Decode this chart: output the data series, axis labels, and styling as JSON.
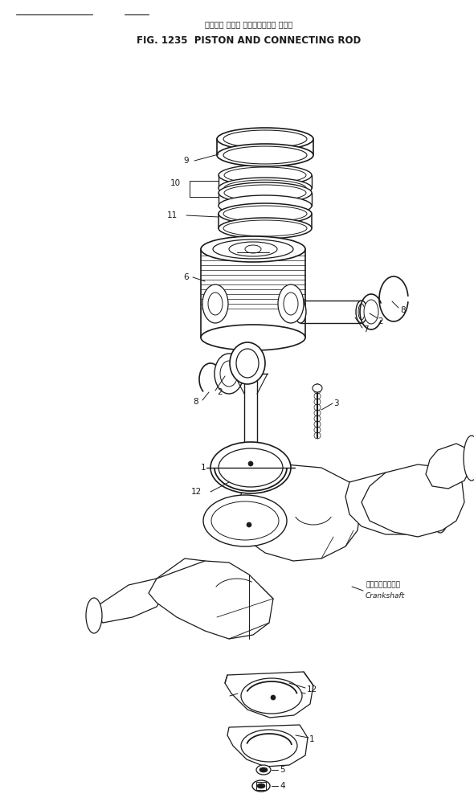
{
  "title_japanese": "ピストン および コネクティング ロッド",
  "title_english": "FIG. 1235  PISTON AND CONNECTING ROD",
  "bg_color": "#ffffff",
  "line_color": "#1a1a1a",
  "fig_width": 5.9,
  "fig_height": 9.98,
  "dpi": 100,
  "crankshaft_label_jp": "クランクシャフト",
  "crankshaft_label_en": "Crankshaft"
}
